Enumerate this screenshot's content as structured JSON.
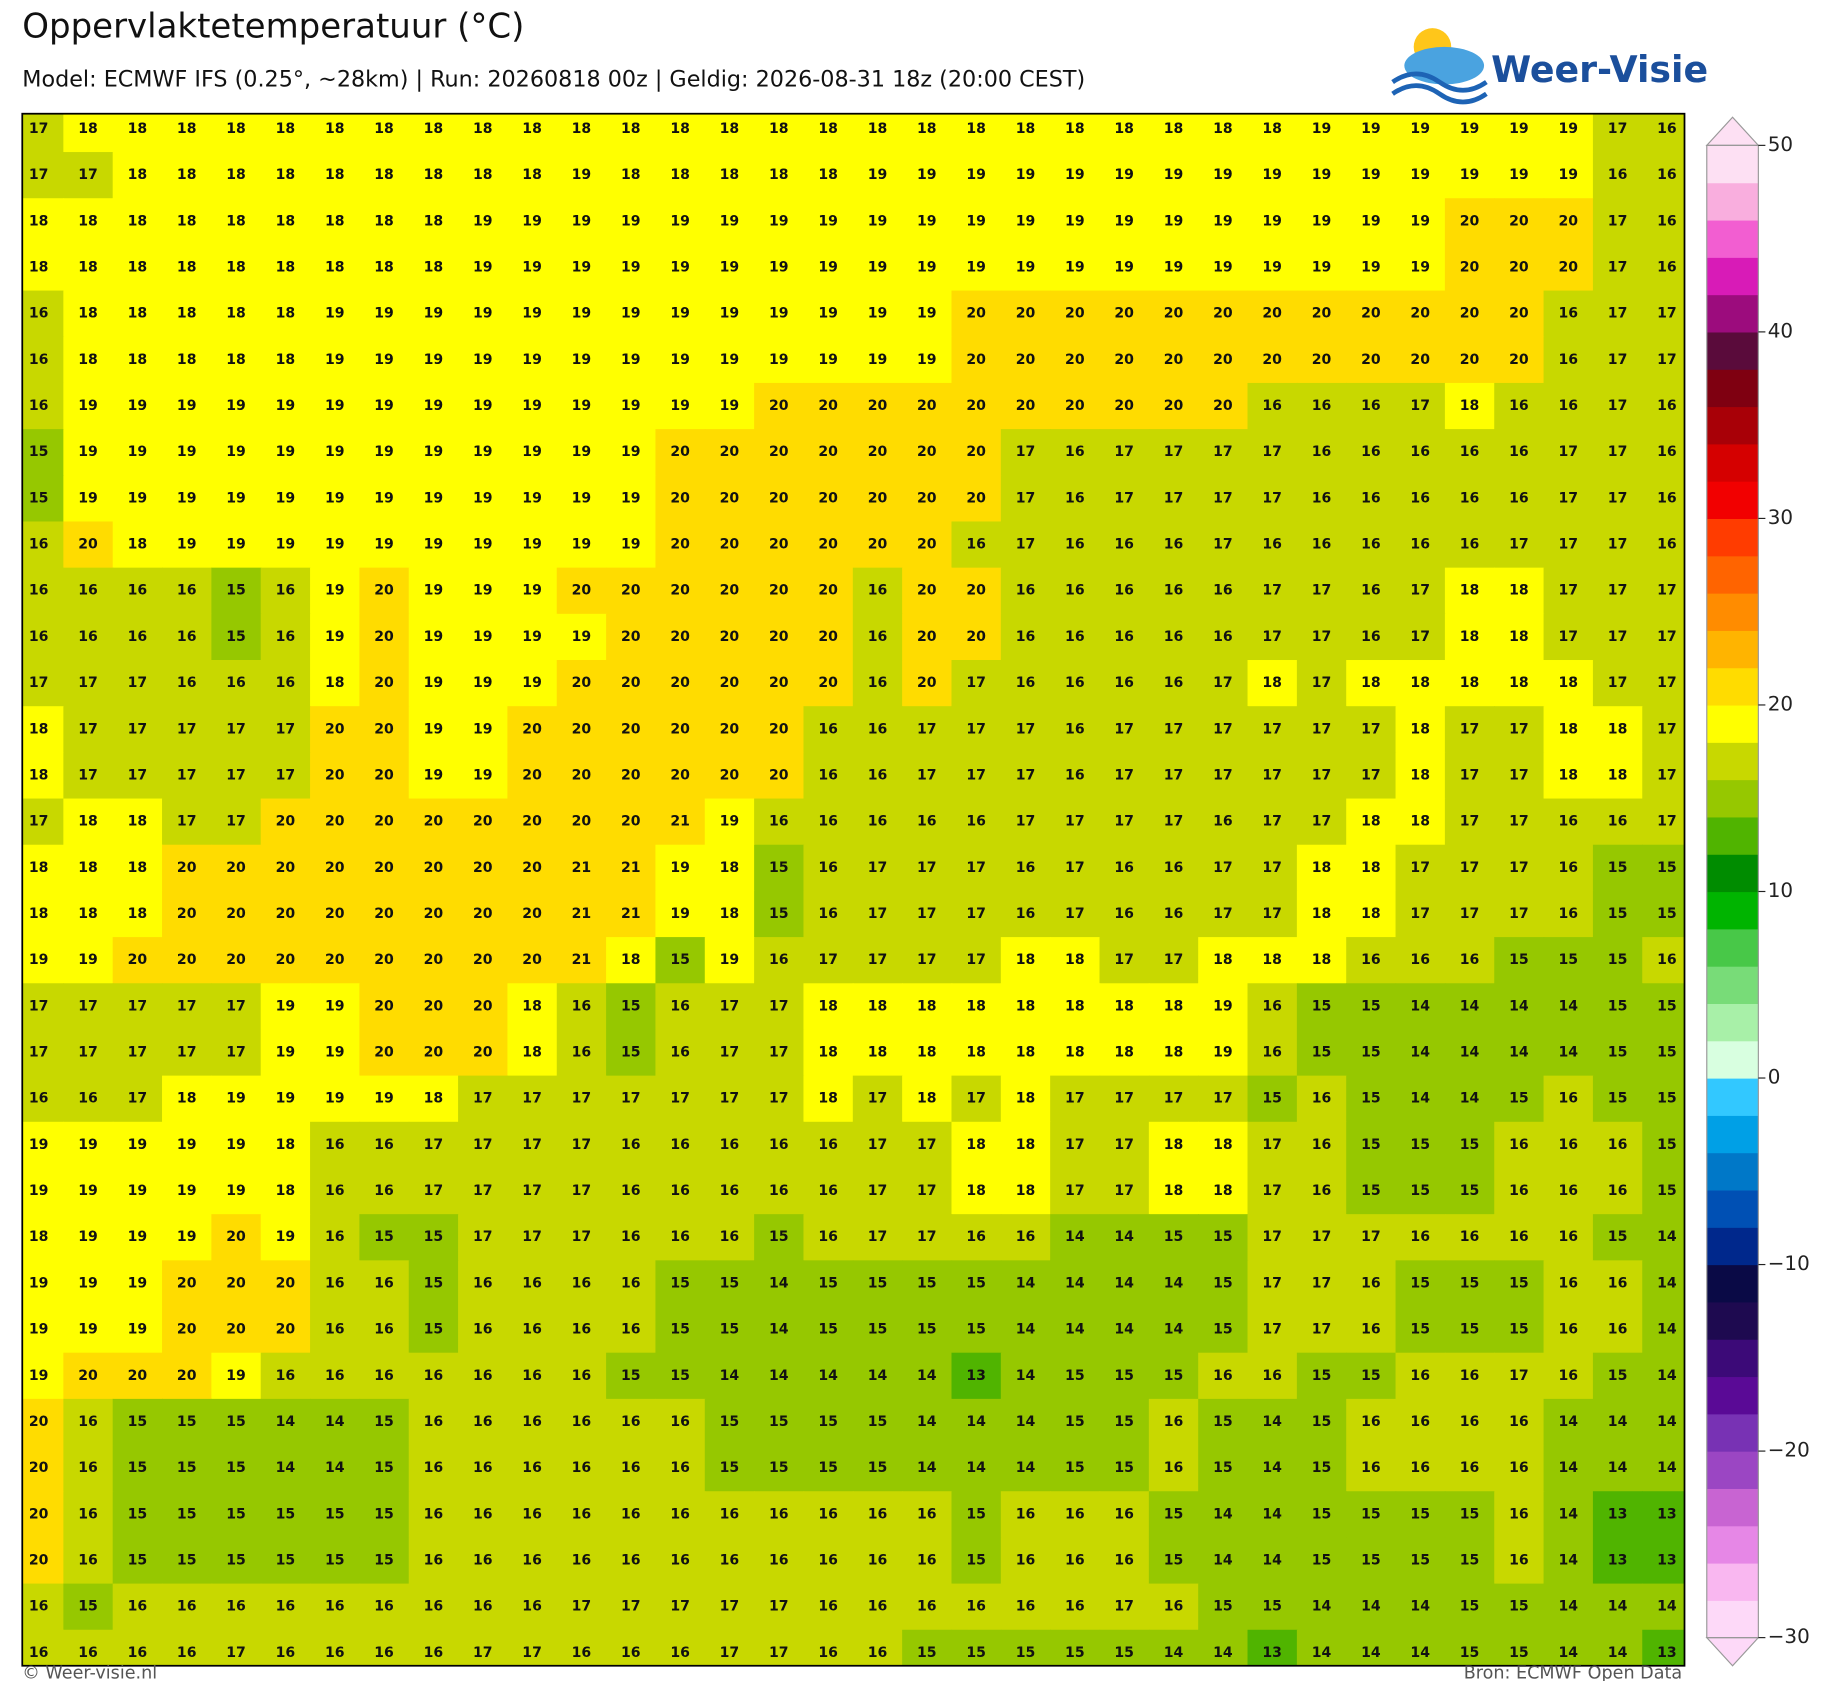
{
  "map": {
    "title": "Oppervlaktetemperatuur (°C)",
    "subtitle": "Model: ECMWF IFS (0.25°, ~28km)  |  Run: 20260818 00z  |  Geldig: 2026-08-31 18z (20:00 CEST)",
    "values": [
      [
        17,
        18,
        18,
        18,
        18,
        18,
        18,
        18,
        18,
        18,
        18,
        18,
        18,
        18,
        18,
        18,
        18,
        18,
        18,
        18,
        18,
        18,
        18,
        18,
        18,
        18,
        19,
        19,
        19,
        19,
        19,
        19,
        17,
        16
      ],
      [
        17,
        17,
        18,
        18,
        18,
        18,
        18,
        18,
        18,
        18,
        18,
        19,
        18,
        18,
        18,
        18,
        18,
        19,
        19,
        19,
        19,
        19,
        19,
        19,
        19,
        19,
        19,
        19,
        19,
        19,
        19,
        19,
        16,
        16
      ],
      [
        18,
        18,
        18,
        18,
        18,
        18,
        18,
        18,
        18,
        19,
        19,
        19,
        19,
        19,
        19,
        19,
        19,
        19,
        19,
        19,
        19,
        19,
        19,
        19,
        19,
        19,
        19,
        19,
        19,
        20,
        20,
        20,
        17,
        16
      ],
      [
        18,
        18,
        18,
        18,
        18,
        18,
        18,
        18,
        18,
        19,
        19,
        19,
        19,
        19,
        19,
        19,
        19,
        19,
        19,
        19,
        19,
        19,
        19,
        19,
        19,
        19,
        19,
        19,
        19,
        20,
        20,
        20,
        17,
        16
      ],
      [
        16,
        18,
        18,
        18,
        18,
        18,
        19,
        19,
        19,
        19,
        19,
        19,
        19,
        19,
        19,
        19,
        19,
        19,
        19,
        20,
        20,
        20,
        20,
        20,
        20,
        20,
        20,
        20,
        20,
        20,
        20,
        16,
        17,
        17
      ],
      [
        16,
        18,
        18,
        18,
        18,
        18,
        19,
        19,
        19,
        19,
        19,
        19,
        19,
        19,
        19,
        19,
        19,
        19,
        19,
        20,
        20,
        20,
        20,
        20,
        20,
        20,
        20,
        20,
        20,
        20,
        20,
        16,
        17,
        17
      ],
      [
        16,
        19,
        19,
        19,
        19,
        19,
        19,
        19,
        19,
        19,
        19,
        19,
        19,
        19,
        19,
        20,
        20,
        20,
        20,
        20,
        20,
        20,
        20,
        20,
        20,
        16,
        16,
        16,
        17,
        18,
        16,
        16,
        17,
        16
      ],
      [
        15,
        19,
        19,
        19,
        19,
        19,
        19,
        19,
        19,
        19,
        19,
        19,
        19,
        20,
        20,
        20,
        20,
        20,
        20,
        20,
        17,
        16,
        17,
        17,
        17,
        17,
        16,
        16,
        16,
        16,
        16,
        17,
        17,
        16
      ],
      [
        15,
        19,
        19,
        19,
        19,
        19,
        19,
        19,
        19,
        19,
        19,
        19,
        19,
        20,
        20,
        20,
        20,
        20,
        20,
        20,
        17,
        16,
        17,
        17,
        17,
        17,
        16,
        16,
        16,
        16,
        16,
        17,
        17,
        16
      ],
      [
        16,
        20,
        18,
        19,
        19,
        19,
        19,
        19,
        19,
        19,
        19,
        19,
        19,
        20,
        20,
        20,
        20,
        20,
        20,
        16,
        17,
        16,
        16,
        16,
        17,
        16,
        16,
        16,
        16,
        16,
        17,
        17,
        17,
        16
      ],
      [
        16,
        16,
        16,
        16,
        15,
        16,
        19,
        20,
        19,
        19,
        19,
        20,
        20,
        20,
        20,
        20,
        20,
        16,
        20,
        20,
        16,
        16,
        16,
        16,
        16,
        17,
        17,
        16,
        17,
        18,
        18,
        17,
        17,
        17
      ],
      [
        16,
        16,
        16,
        16,
        15,
        16,
        19,
        20,
        19,
        19,
        19,
        19,
        20,
        20,
        20,
        20,
        20,
        16,
        20,
        20,
        16,
        16,
        16,
        16,
        16,
        17,
        17,
        16,
        17,
        18,
        18,
        17,
        17,
        17
      ],
      [
        17,
        17,
        17,
        16,
        16,
        16,
        18,
        20,
        19,
        19,
        19,
        20,
        20,
        20,
        20,
        20,
        20,
        16,
        20,
        17,
        16,
        16,
        16,
        16,
        17,
        18,
        17,
        18,
        18,
        18,
        18,
        18,
        17,
        17
      ],
      [
        18,
        17,
        17,
        17,
        17,
        17,
        20,
        20,
        19,
        19,
        20,
        20,
        20,
        20,
        20,
        20,
        16,
        16,
        17,
        17,
        17,
        16,
        17,
        17,
        17,
        17,
        17,
        17,
        18,
        17,
        17,
        18,
        18,
        17
      ],
      [
        18,
        17,
        17,
        17,
        17,
        17,
        20,
        20,
        19,
        19,
        20,
        20,
        20,
        20,
        20,
        20,
        16,
        16,
        17,
        17,
        17,
        16,
        17,
        17,
        17,
        17,
        17,
        17,
        18,
        17,
        17,
        18,
        18,
        17
      ],
      [
        17,
        18,
        18,
        17,
        17,
        20,
        20,
        20,
        20,
        20,
        20,
        20,
        20,
        21,
        19,
        16,
        16,
        16,
        16,
        16,
        17,
        17,
        17,
        17,
        16,
        17,
        17,
        18,
        18,
        17,
        17,
        16,
        16,
        17
      ],
      [
        18,
        18,
        18,
        20,
        20,
        20,
        20,
        20,
        20,
        20,
        20,
        21,
        21,
        19,
        18,
        15,
        16,
        17,
        17,
        17,
        16,
        17,
        16,
        16,
        17,
        17,
        18,
        18,
        17,
        17,
        17,
        16,
        15,
        15
      ],
      [
        18,
        18,
        18,
        20,
        20,
        20,
        20,
        20,
        20,
        20,
        20,
        21,
        21,
        19,
        18,
        15,
        16,
        17,
        17,
        17,
        16,
        17,
        16,
        16,
        17,
        17,
        18,
        18,
        17,
        17,
        17,
        16,
        15,
        15
      ],
      [
        19,
        19,
        20,
        20,
        20,
        20,
        20,
        20,
        20,
        20,
        20,
        21,
        18,
        15,
        19,
        16,
        17,
        17,
        17,
        17,
        18,
        18,
        17,
        17,
        18,
        18,
        18,
        16,
        16,
        16,
        15,
        15,
        15,
        16
      ],
      [
        17,
        17,
        17,
        17,
        17,
        19,
        19,
        20,
        20,
        20,
        18,
        16,
        15,
        16,
        17,
        17,
        18,
        18,
        18,
        18,
        18,
        18,
        18,
        18,
        19,
        16,
        15,
        15,
        14,
        14,
        14,
        14,
        15,
        15
      ],
      [
        17,
        17,
        17,
        17,
        17,
        19,
        19,
        20,
        20,
        20,
        18,
        16,
        15,
        16,
        17,
        17,
        18,
        18,
        18,
        18,
        18,
        18,
        18,
        18,
        19,
        16,
        15,
        15,
        14,
        14,
        14,
        14,
        15,
        15
      ],
      [
        16,
        16,
        17,
        18,
        19,
        19,
        19,
        19,
        18,
        17,
        17,
        17,
        17,
        17,
        17,
        17,
        18,
        17,
        18,
        17,
        18,
        17,
        17,
        17,
        17,
        15,
        16,
        15,
        14,
        14,
        15,
        16,
        15,
        15
      ],
      [
        19,
        19,
        19,
        19,
        19,
        18,
        16,
        16,
        17,
        17,
        17,
        17,
        16,
        16,
        16,
        16,
        16,
        17,
        17,
        18,
        18,
        17,
        17,
        18,
        18,
        17,
        16,
        15,
        15,
        15,
        16,
        16,
        16,
        15
      ],
      [
        19,
        19,
        19,
        19,
        19,
        18,
        16,
        16,
        17,
        17,
        17,
        17,
        16,
        16,
        16,
        16,
        16,
        17,
        17,
        18,
        18,
        17,
        17,
        18,
        18,
        17,
        16,
        15,
        15,
        15,
        16,
        16,
        16,
        15
      ],
      [
        18,
        19,
        19,
        19,
        20,
        19,
        16,
        15,
        15,
        17,
        17,
        17,
        16,
        16,
        16,
        15,
        16,
        17,
        17,
        16,
        16,
        14,
        14,
        15,
        15,
        17,
        17,
        17,
        16,
        16,
        16,
        16,
        15,
        14
      ],
      [
        19,
        19,
        19,
        20,
        20,
        20,
        16,
        16,
        15,
        16,
        16,
        16,
        16,
        15,
        15,
        14,
        15,
        15,
        15,
        15,
        14,
        14,
        14,
        14,
        15,
        17,
        17,
        16,
        15,
        15,
        15,
        16,
        16,
        14
      ],
      [
        19,
        19,
        19,
        20,
        20,
        20,
        16,
        16,
        15,
        16,
        16,
        16,
        16,
        15,
        15,
        14,
        15,
        15,
        15,
        15,
        14,
        14,
        14,
        14,
        15,
        17,
        17,
        16,
        15,
        15,
        15,
        16,
        16,
        14
      ],
      [
        19,
        20,
        20,
        20,
        19,
        16,
        16,
        16,
        16,
        16,
        16,
        16,
        15,
        15,
        14,
        14,
        14,
        14,
        14,
        13,
        14,
        15,
        15,
        15,
        16,
        16,
        15,
        15,
        16,
        16,
        17,
        16,
        15,
        14
      ],
      [
        20,
        16,
        15,
        15,
        15,
        14,
        14,
        15,
        16,
        16,
        16,
        16,
        16,
        16,
        15,
        15,
        15,
        15,
        14,
        14,
        14,
        15,
        15,
        16,
        15,
        14,
        15,
        16,
        16,
        16,
        16,
        14,
        14,
        14
      ],
      [
        20,
        16,
        15,
        15,
        15,
        14,
        14,
        15,
        16,
        16,
        16,
        16,
        16,
        16,
        15,
        15,
        15,
        15,
        14,
        14,
        14,
        15,
        15,
        16,
        15,
        14,
        15,
        16,
        16,
        16,
        16,
        14,
        14,
        14
      ],
      [
        20,
        16,
        15,
        15,
        15,
        15,
        15,
        15,
        16,
        16,
        16,
        16,
        16,
        16,
        16,
        16,
        16,
        16,
        16,
        15,
        16,
        16,
        16,
        15,
        14,
        14,
        15,
        15,
        15,
        15,
        16,
        14,
        13,
        13
      ],
      [
        20,
        16,
        15,
        15,
        15,
        15,
        15,
        15,
        16,
        16,
        16,
        16,
        16,
        16,
        16,
        16,
        16,
        16,
        16,
        15,
        16,
        16,
        16,
        15,
        14,
        14,
        15,
        15,
        15,
        15,
        16,
        14,
        13,
        13
      ],
      [
        16,
        15,
        16,
        16,
        16,
        16,
        16,
        16,
        16,
        16,
        16,
        17,
        17,
        17,
        17,
        17,
        16,
        16,
        16,
        16,
        16,
        16,
        17,
        16,
        15,
        15,
        14,
        14,
        14,
        15,
        15,
        14,
        14,
        14
      ],
      [
        16,
        16,
        16,
        16,
        17,
        16,
        16,
        16,
        16,
        17,
        17,
        16,
        16,
        16,
        17,
        17,
        16,
        16,
        15,
        15,
        15,
        15,
        15,
        14,
        14,
        13,
        14,
        14,
        14,
        15,
        15,
        14,
        14,
        13
      ]
    ],
    "colorbar": {
      "lim": [
        -30,
        50
      ],
      "ticks": [
        {
          "value": -30,
          "label": "−30"
        },
        {
          "value": -20,
          "label": "−20"
        },
        {
          "value": -10,
          "label": "−10"
        },
        0,
        10,
        20,
        30,
        40,
        50
      ],
      "colors": [
        "#fdd9f8",
        "#f9b7f0",
        "#e687e6",
        "#c864d2",
        "#9b46c3",
        "#7832b4",
        "#5a0a96",
        "#3c0a78",
        "#1e0a50",
        "#0a0a46",
        "#00288c",
        "#0050b4",
        "#0078c8",
        "#00a0e6",
        "#32c8ff",
        "#d8ffe0",
        "#a8f0a8",
        "#78dc78",
        "#48c848",
        "#00b400",
        "#008c00",
        "#50b400",
        "#96c800",
        "#c8d800",
        "#ffff00",
        "#ffdc00",
        "#ffb400",
        "#ff8c00",
        "#ff6400",
        "#ff3c00",
        "#f20000",
        "#d50000",
        "#a80007",
        "#7f0011",
        "#5a0b3b",
        "#9c0c7d",
        "#d81bb7",
        "#f25ed1",
        "#f9aede",
        "#fde0f3"
      ]
    }
  },
  "logo": "Weer-Visie",
  "footer": {
    "left": "© Weer-visie.nl",
    "right": "Bron: ECMWF Open Data"
  }
}
